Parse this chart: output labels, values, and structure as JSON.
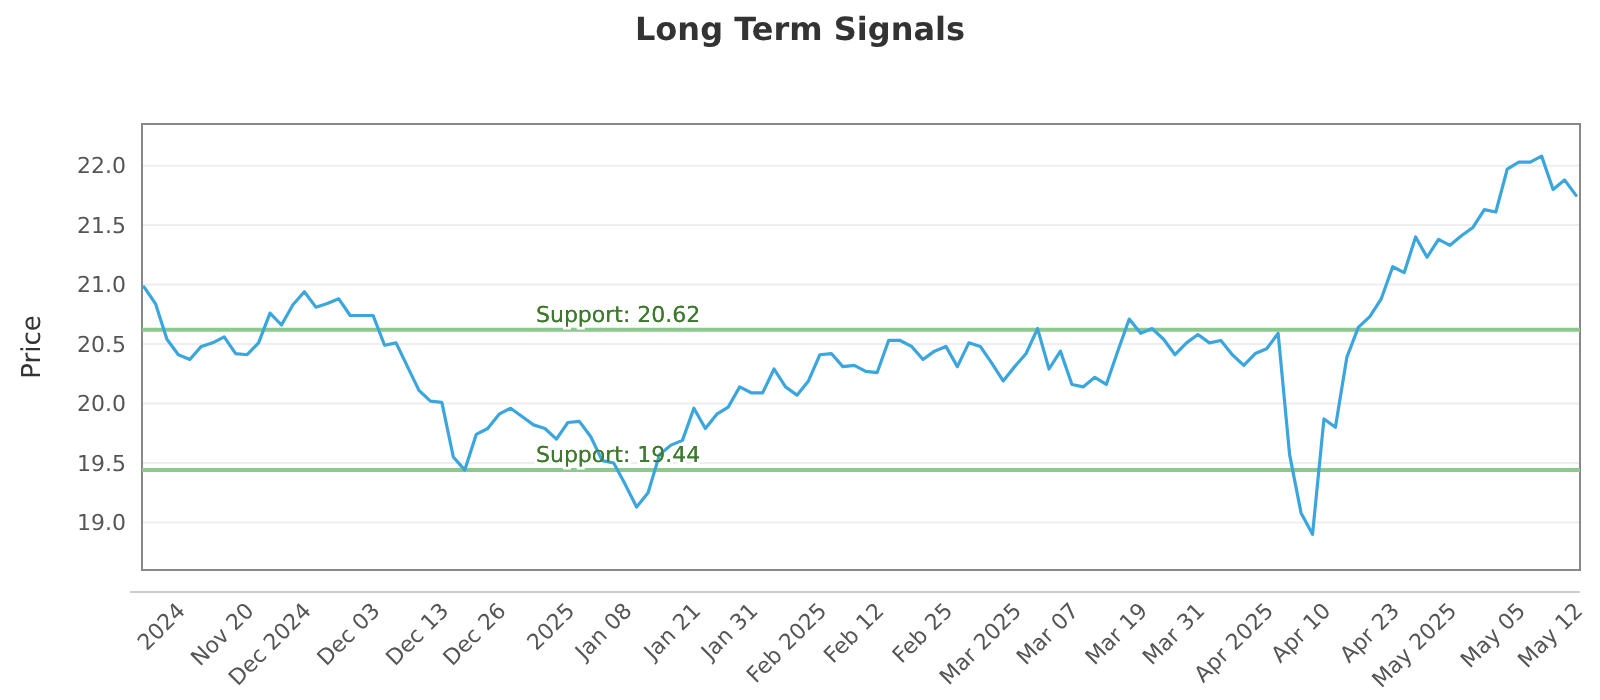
{
  "chart_data": {
    "type": "line",
    "title": "Long Term Signals",
    "ylabel": "Price",
    "categories": [
      null,
      null,
      null,
      "2024",
      null,
      null,
      null,
      null,
      null,
      "Nov 20",
      null,
      null,
      null,
      null,
      "Dec 2024",
      null,
      null,
      null,
      null,
      null,
      "Dec 03",
      null,
      null,
      null,
      null,
      null,
      "Dec 13",
      null,
      null,
      null,
      null,
      "Dec 26",
      null,
      null,
      null,
      null,
      null,
      "2025",
      null,
      null,
      null,
      null,
      "Jan 08",
      null,
      null,
      null,
      null,
      null,
      "Jan 21",
      null,
      null,
      null,
      null,
      "Jan 31",
      null,
      null,
      null,
      null,
      null,
      "Feb 2025",
      null,
      null,
      null,
      null,
      "Feb 12",
      null,
      null,
      null,
      null,
      null,
      "Feb 25",
      null,
      null,
      null,
      null,
      null,
      "Mar 2025",
      null,
      null,
      null,
      null,
      "Mar 07",
      null,
      null,
      null,
      null,
      null,
      "Mar 19",
      null,
      null,
      null,
      null,
      "Mar 31",
      null,
      null,
      null,
      null,
      null,
      "Apr 2025",
      null,
      null,
      null,
      null,
      "Apr 10",
      null,
      null,
      null,
      null,
      null,
      "Apr 23",
      null,
      null,
      null,
      null,
      "May 2025",
      null,
      null,
      null,
      null,
      null,
      "May 05",
      null,
      null,
      null,
      null,
      "May 12"
    ],
    "series": [
      {
        "color": "#3aa6dd",
        "values": [
          20.98,
          20.84,
          20.54,
          20.41,
          20.37,
          20.48,
          20.51,
          20.56,
          20.42,
          20.41,
          20.51,
          20.76,
          20.66,
          20.83,
          20.94,
          20.81,
          20.84,
          20.88,
          20.74,
          20.74,
          20.74,
          20.49,
          20.51,
          20.31,
          20.11,
          20.02,
          20.01,
          19.55,
          19.44,
          19.74,
          19.79,
          19.91,
          19.96,
          19.89,
          19.82,
          19.79,
          19.7,
          19.84,
          19.85,
          19.72,
          19.52,
          19.5,
          19.32,
          19.13,
          19.25,
          19.57,
          19.65,
          19.69,
          19.96,
          19.79,
          19.91,
          19.97,
          20.14,
          20.09,
          20.09,
          20.29,
          20.14,
          20.07,
          20.19,
          20.41,
          20.42,
          20.31,
          20.32,
          20.27,
          20.26,
          20.53,
          20.53,
          20.48,
          20.37,
          20.44,
          20.48,
          20.31,
          20.51,
          20.48,
          20.34,
          20.19,
          20.31,
          20.42,
          20.63,
          20.29,
          20.44,
          20.16,
          20.14,
          20.22,
          20.16,
          20.44,
          20.71,
          20.59,
          20.63,
          20.54,
          20.41,
          20.51,
          20.58,
          20.51,
          20.53,
          20.41,
          20.32,
          20.42,
          20.46,
          20.59,
          19.57,
          19.08,
          18.9,
          19.87,
          19.8,
          20.39,
          20.64,
          20.73,
          20.88,
          21.15,
          21.1,
          21.4,
          21.23,
          21.38,
          21.33,
          21.41,
          21.48,
          21.63,
          21.61,
          21.97,
          22.03,
          22.03,
          22.08,
          21.8,
          21.88,
          21.75
        ]
      }
    ],
    "ylim": [
      18.6,
      22.35
    ],
    "yticks": [
      {
        "value": 19,
        "label": "19.0"
      },
      {
        "value": 19.5,
        "label": "19.5"
      },
      {
        "value": 20,
        "label": "20.0"
      },
      {
        "value": 20.5,
        "label": "20.5"
      },
      {
        "value": 21,
        "label": "21.0"
      },
      {
        "value": 21.5,
        "label": "21.5"
      },
      {
        "value": 22,
        "label": "22.0"
      }
    ],
    "grid": "y",
    "marker": "none",
    "line_style": "solid",
    "ref_lines": [
      {
        "axis": "y",
        "value": 20.62,
        "label": "Support: 20.62",
        "color": "#8cc98c"
      },
      {
        "axis": "y",
        "value": 19.44,
        "label": "Support: 19.44",
        "color": "#8cc98c"
      }
    ]
  }
}
